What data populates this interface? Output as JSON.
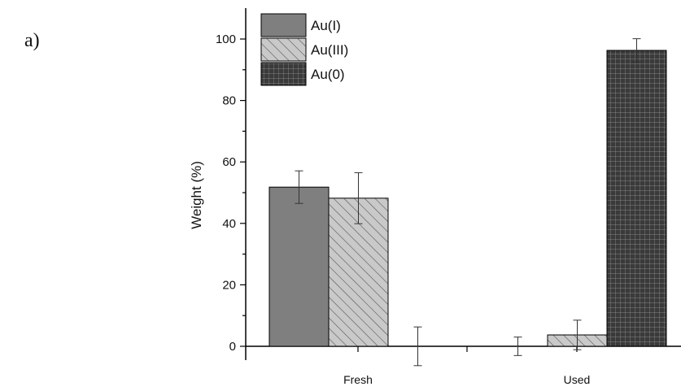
{
  "panel_label": "a)",
  "chart_data": {
    "type": "bar",
    "categories": [
      "Fresh",
      "Used"
    ],
    "ylabel": "Weight (%)",
    "xlabel": "",
    "ylim": [
      -5,
      110
    ],
    "yticks": [
      0,
      20,
      40,
      60,
      80,
      100
    ],
    "legend_placement": "top-left",
    "grid": false,
    "series": [
      {
        "name": "Au(I)",
        "values": [
          51.8,
          0.0
        ],
        "errors": [
          5.3,
          3.0
        ],
        "pattern": "solid",
        "color": "#7f7f7f"
      },
      {
        "name": "Au(III)",
        "values": [
          48.2,
          3.7
        ],
        "errors": [
          8.3,
          4.8
        ],
        "pattern": "diagonal",
        "color": "#c9c9c9"
      },
      {
        "name": "Au(0)",
        "values": [
          0.0,
          96.3
        ],
        "errors": [
          6.3,
          3.8
        ],
        "pattern": "grid",
        "color": "#3a3a3a"
      }
    ]
  }
}
